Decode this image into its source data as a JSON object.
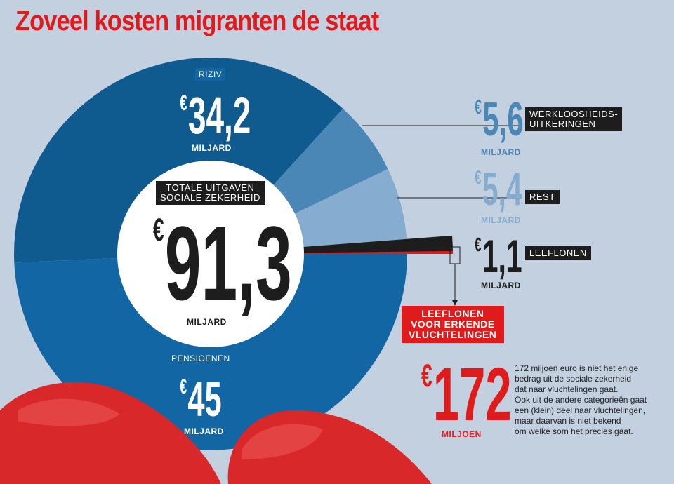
{
  "title": "Zoveel kosten migranten de staat",
  "chart_data": {
    "type": "pie",
    "center": {
      "caption_line1": "TOTALE UITGAVEN",
      "caption_line2": "SOCIALE ZEKERHEID",
      "currency": "€",
      "value_text": "91,3",
      "value": 91.3,
      "unit": "MILJARD"
    },
    "slices": [
      {
        "key": "riziv",
        "label": "RIZIV",
        "value": 34.2,
        "value_text": "34,2",
        "unit": "MILJARD",
        "color": "#0f5a8e"
      },
      {
        "key": "werkloosheid",
        "label_line1": "WERKLOOSHEIDS-",
        "label_line2": "UITKERINGEN",
        "value": 5.6,
        "value_text": "5,6",
        "unit": "MILJARD",
        "color": "#4a86b6"
      },
      {
        "key": "rest",
        "label": "REST",
        "value": 5.4,
        "value_text": "5,4",
        "unit": "MILJARD",
        "color": "#86acd0"
      },
      {
        "key": "leeflonen",
        "label": "LEEFLONEN",
        "value": 1.1,
        "value_text": "1,1",
        "unit": "MILJARD",
        "color": "#1d1d1d"
      },
      {
        "key": "pensioenen",
        "label": "PENSIOENEN",
        "value": 45,
        "value_text": "45",
        "unit": "MILJARD",
        "color": "#1266a3"
      }
    ],
    "highlight": {
      "label_line1": "LEEFLONEN",
      "label_line2": "VOOR ERKENDE",
      "label_line3": "VLUCHTELINGEN",
      "value": 172,
      "value_text": "172",
      "unit": "MILJOEN",
      "color": "#e01b1b"
    }
  },
  "note": {
    "line1": "172 miljoen euro is niet het enige",
    "line2": "bedrag uit de sociale zekerheid",
    "line3": "dat naar vluchtelingen gaat.",
    "line4": "Ook uit de andere categorieën gaat",
    "line5": "een (klein) deel naar vluchtelingen,",
    "line6": "maar daarvan is niet bekend",
    "line7": "om welke som het precies gaat."
  }
}
